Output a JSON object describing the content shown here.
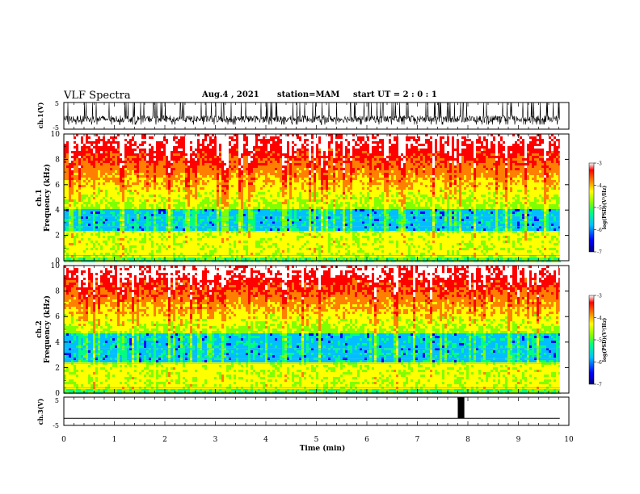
{
  "header": {
    "title": "VLF Spectra",
    "date": "Aug.4 , 2021",
    "station": "station=MAM",
    "start_ut": "start UT = 2 : 0 : 1"
  },
  "colors": {
    "spectrogram_scale": [
      "#00007f",
      "#0000ff",
      "#00bfff",
      "#00ff7f",
      "#7fff00",
      "#ffff00",
      "#ff7f00",
      "#ff0000",
      "#ffffff"
    ],
    "trace": "#000000"
  },
  "chart_data": [
    {
      "type": "line",
      "panel": "ch1-waveform",
      "ylabel": "ch.1(V)",
      "ylim": [
        -5,
        5
      ],
      "y_ticks": [
        "5",
        "-5"
      ],
      "xlim": [
        0,
        10
      ],
      "description_values": {
        "x_min": 0,
        "x_max": 9.82,
        "y_min": -3.3,
        "y_max": 5
      }
    },
    {
      "type": "heatmap",
      "panel": "ch1-spectrogram",
      "ylabel": "ch.1\nFrequency (kHz)",
      "ylim": [
        0,
        10
      ],
      "y_ticks": [
        "0",
        "2",
        "4",
        "6",
        "8",
        "10"
      ],
      "xlim": [
        0,
        9.82
      ],
      "colorbar": {
        "label": "log(PSD)(V²/Hz)",
        "range": [
          -7,
          -3
        ],
        "ticks": [
          "-3",
          "-4",
          "-5",
          "-6",
          "-7"
        ]
      },
      "bands_kHz": {
        "low_strong_band": [
          0.3,
          2.4
        ],
        "weak_band": [
          2.4,
          4.0
        ],
        "high_strong_band": [
          4.0,
          10
        ]
      }
    },
    {
      "type": "heatmap",
      "panel": "ch2-spectrogram",
      "ylabel": "ch.2\nFrequency (kHz)",
      "ylim": [
        0,
        10
      ],
      "y_ticks": [
        "0",
        "2",
        "4",
        "6",
        "8",
        "10"
      ],
      "xlim": [
        0,
        9.82
      ],
      "colorbar": {
        "label": "log(PSD)(V²/Hz)",
        "range": [
          -7,
          -3
        ],
        "ticks": [
          "-3",
          "-4",
          "-5",
          "-6",
          "-7"
        ]
      },
      "bands_kHz": {
        "low_strong_band": [
          0.3,
          2.4
        ],
        "weak_band": [
          2.4,
          4.6
        ],
        "high_strong_band": [
          4.6,
          10
        ]
      }
    },
    {
      "type": "line",
      "panel": "ch3-waveform",
      "ylabel": "ch.3(V)",
      "ylim": [
        -5,
        5
      ],
      "y_ticks": [
        "5",
        "-5"
      ],
      "xlim": [
        0,
        10
      ],
      "baseline": -2.5,
      "pulse": {
        "start": 7.8,
        "end": 7.93,
        "high": 5
      }
    }
  ],
  "time_axis": {
    "label": "Time (min)",
    "ticks": [
      "0",
      "1",
      "2",
      "3",
      "4",
      "5",
      "6",
      "7",
      "8",
      "9",
      "10"
    ]
  }
}
